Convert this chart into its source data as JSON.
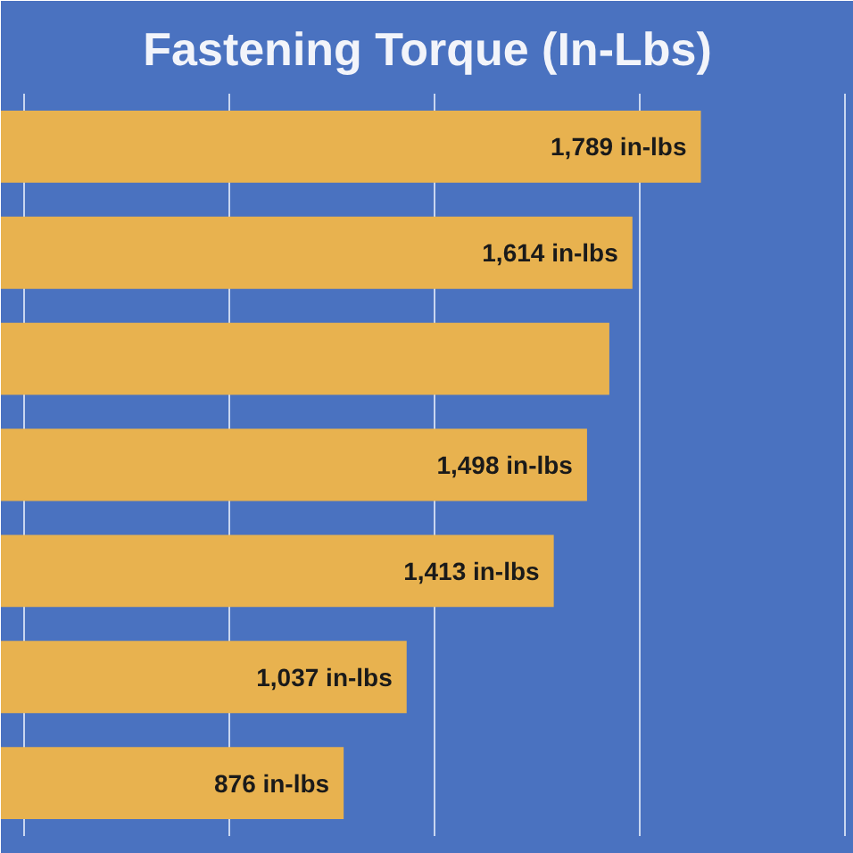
{
  "chart_data": {
    "type": "bar",
    "orientation": "horizontal",
    "title": "Fastening Torque (In-Lbs)",
    "categories": [
      null,
      null,
      null,
      null,
      null,
      null,
      null
    ],
    "values": [
      1789,
      1614,
      1555,
      1498,
      1413,
      1037,
      876
    ],
    "value_labels": [
      "1,789 in-lbs",
      "1,614 in-lbs",
      null,
      "1,498 in-lbs",
      "1,413 in-lbs",
      "1,037 in-lbs",
      "876 in-lbs"
    ],
    "color": "#e8b24f",
    "xlim": [
      0,
      2180
    ],
    "xticks": [
      {
        "value": 60,
        "label": null
      },
      {
        "value": 584,
        "label": null
      },
      {
        "value": 1108,
        "label": null
      },
      {
        "value": 1632,
        "label": null
      },
      {
        "value": 2156,
        "label": null
      }
    ],
    "grid": "x",
    "tick_labels": false
  }
}
